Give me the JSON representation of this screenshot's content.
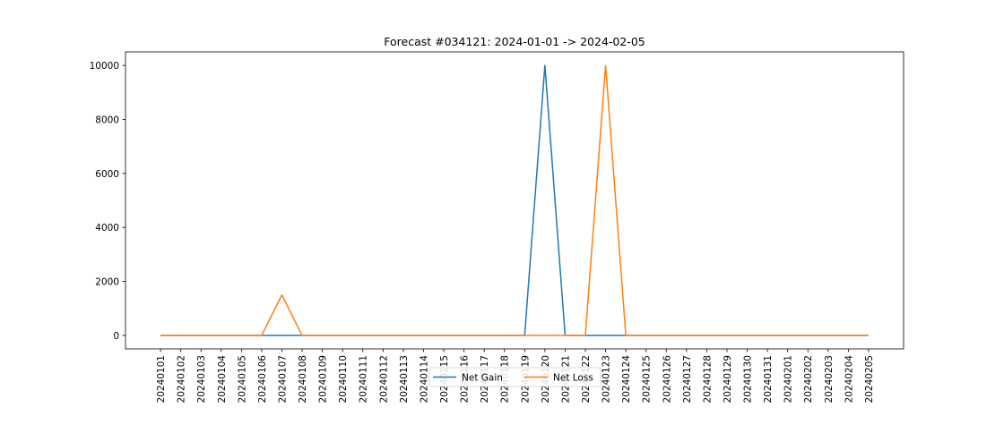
{
  "chart_data": {
    "type": "line",
    "title": "Forecast #034121: 2024-01-01 -> 2024-02-05",
    "xlabel": "",
    "ylabel": "",
    "categories": [
      "20240101",
      "20240102",
      "20240103",
      "20240104",
      "20240105",
      "20240106",
      "20240107",
      "20240108",
      "20240109",
      "20240110",
      "20240111",
      "20240112",
      "20240113",
      "20240114",
      "20240115",
      "20240116",
      "20240117",
      "20240118",
      "20240119",
      "20240120",
      "20240121",
      "20240122",
      "20240123",
      "20240124",
      "20240125",
      "20240126",
      "20240127",
      "20240128",
      "20240129",
      "20240130",
      "20240131",
      "20240201",
      "20240202",
      "20240203",
      "20240204",
      "20240205"
    ],
    "ylim": [
      -500,
      10500
    ],
    "yticks": [
      0,
      2000,
      4000,
      6000,
      8000,
      10000
    ],
    "grid": false,
    "legend_position": "bottom-center",
    "series": [
      {
        "name": "Net Gain",
        "color": "#1f77b4",
        "values": [
          0,
          0,
          0,
          0,
          0,
          0,
          0,
          0,
          0,
          0,
          0,
          0,
          0,
          0,
          0,
          0,
          0,
          0,
          0,
          10000,
          0,
          0,
          0,
          0,
          0,
          0,
          0,
          0,
          0,
          0,
          0,
          0,
          0,
          0,
          0,
          0
        ]
      },
      {
        "name": "Net Loss",
        "color": "#ff7f0e",
        "values": [
          0,
          0,
          0,
          0,
          0,
          0,
          1500,
          0,
          0,
          0,
          0,
          0,
          0,
          0,
          0,
          0,
          0,
          0,
          0,
          0,
          0,
          0,
          10000,
          0,
          0,
          0,
          0,
          0,
          0,
          0,
          0,
          0,
          0,
          0,
          0,
          0
        ]
      }
    ]
  }
}
